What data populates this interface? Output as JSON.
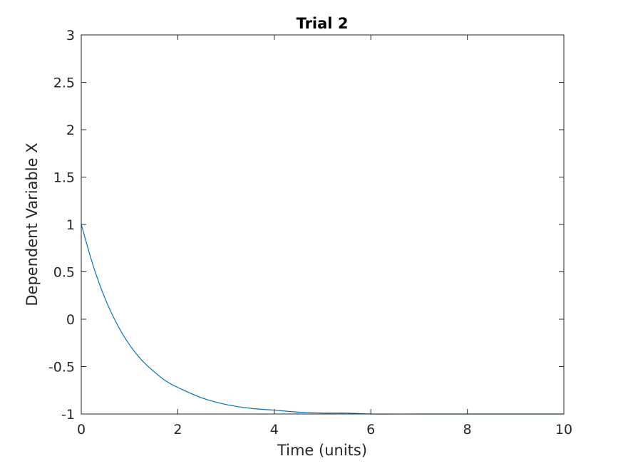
{
  "chart_data": {
    "type": "line",
    "title": "Trial 2",
    "xlabel": "Time (units)",
    "ylabel": "Dependent Variable X",
    "xlim": [
      0,
      10
    ],
    "ylim": [
      -1,
      3
    ],
    "xticks": [
      0,
      2,
      4,
      6,
      8,
      10
    ],
    "xtick_labels": [
      "0",
      "2",
      "4",
      "6",
      "8",
      "10"
    ],
    "yticks": [
      -1,
      -0.5,
      0,
      0.5,
      1,
      1.5,
      2,
      2.5,
      3
    ],
    "ytick_labels": [
      "-1",
      "-0.5",
      "0",
      "0.5",
      "1",
      "1.5",
      "2",
      "2.5",
      "3"
    ],
    "grid": false,
    "legend": false,
    "series": [
      {
        "color": "#0072bd",
        "x": [
          0,
          0.25,
          0.5,
          0.75,
          1,
          1.25,
          1.5,
          1.75,
          2,
          2.5,
          3,
          3.5,
          4,
          4.5,
          5,
          5.5,
          6,
          7,
          8,
          9,
          10
        ],
        "y": [
          1,
          0.56,
          0.21,
          -0.06,
          -0.27,
          -0.43,
          -0.55,
          -0.65,
          -0.72,
          -0.83,
          -0.9,
          -0.94,
          -0.96,
          -0.98,
          -0.99,
          -0.99,
          -1.0,
          -1.0,
          -1.0,
          -1.0,
          -1.0
        ]
      }
    ]
  }
}
